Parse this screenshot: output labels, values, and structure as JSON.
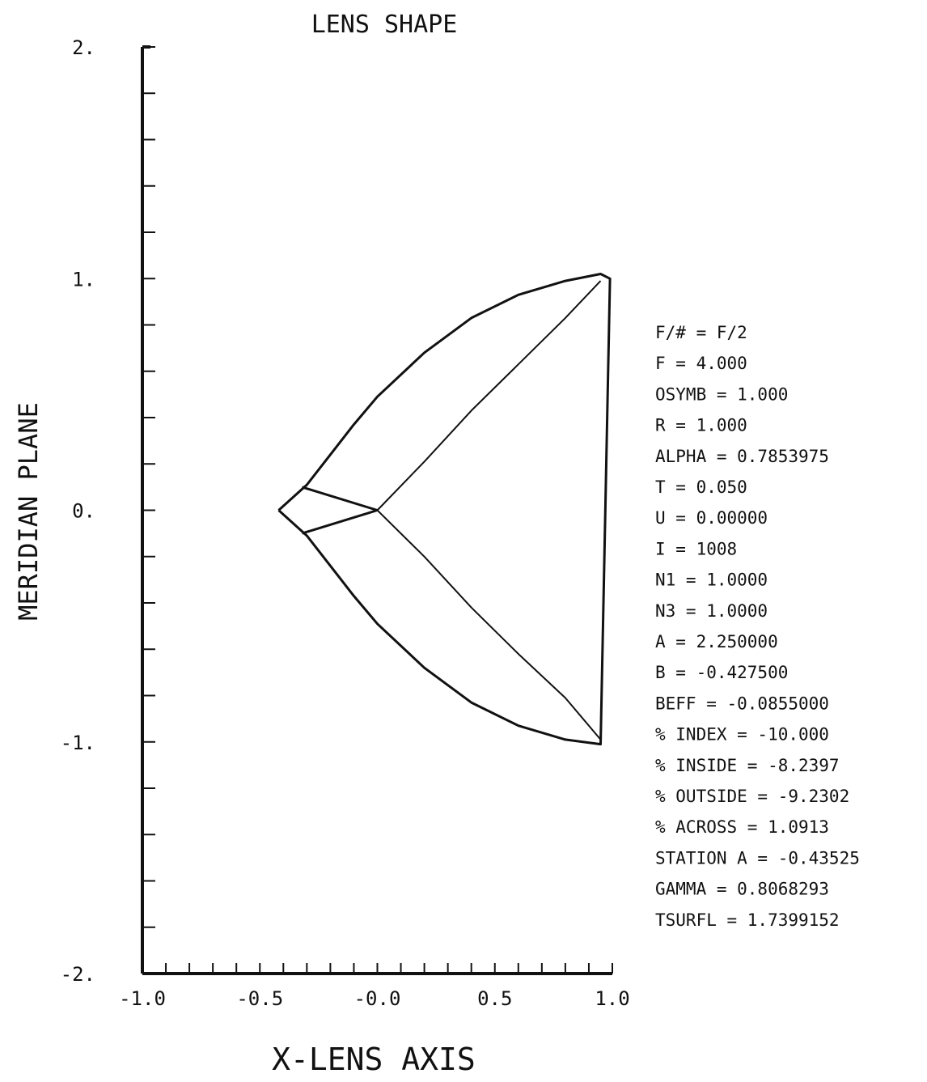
{
  "chart_data": {
    "type": "line",
    "title": "LENS SHAPE",
    "xlabel": "X-LENS AXIS",
    "ylabel": "MERIDIAN PLANE",
    "xlim": [
      -1.0,
      1.0
    ],
    "ylim": [
      -2.0,
      2.0
    ],
    "x_ticks": [
      "-1.0",
      "-0.5",
      "-0.0",
      "0.5",
      "1.0"
    ],
    "y_ticks": [
      "2.",
      "1.",
      "0.",
      "-1.",
      "-2."
    ],
    "series": [
      {
        "id": "outer-surface",
        "x": [
          -0.42,
          -0.3,
          -0.2,
          -0.1,
          0.0,
          0.2,
          0.4,
          0.6,
          0.8,
          0.95,
          0.99,
          0.95,
          0.8,
          0.6,
          0.4,
          0.2,
          0.0,
          -0.1,
          -0.2,
          -0.3,
          -0.42
        ],
        "y": [
          0.0,
          0.11,
          0.24,
          0.37,
          0.49,
          0.68,
          0.83,
          0.93,
          0.99,
          1.02,
          1.0,
          -1.01,
          -0.99,
          -0.93,
          -0.83,
          -0.68,
          -0.49,
          -0.37,
          -0.24,
          -0.11,
          0.0
        ]
      },
      {
        "id": "upper-inner-line",
        "x": [
          0.0,
          0.2,
          0.4,
          0.6,
          0.8,
          0.95
        ],
        "y": [
          0.0,
          0.21,
          0.43,
          0.63,
          0.83,
          0.99
        ]
      },
      {
        "id": "lower-inner-line",
        "x": [
          0.0,
          0.2,
          0.4,
          0.6,
          0.8,
          0.95
        ],
        "y": [
          0.0,
          -0.2,
          -0.42,
          -0.62,
          -0.81,
          -0.99
        ]
      },
      {
        "id": "upper-chord",
        "x": [
          -0.32,
          0.0
        ],
        "y": [
          0.1,
          0.0
        ]
      },
      {
        "id": "lower-chord",
        "x": [
          -0.32,
          0.0
        ],
        "y": [
          -0.1,
          0.0
        ]
      }
    ]
  },
  "parameters": [
    "F/# = F/2",
    "F = 4.000",
    "OSYMB = 1.000",
    "R = 1.000",
    "ALPHA = 0.7853975",
    "T = 0.050",
    "U = 0.00000",
    "I = 1008",
    "N1 = 1.0000",
    "N3 = 1.0000",
    "A = 2.250000",
    "B = -0.427500",
    "BEFF = -0.0855000",
    "% INDEX = -10.000",
    "% INSIDE = -8.2397",
    "% OUTSIDE = -9.2302",
    "% ACROSS = 1.0913",
    "STATION A = -0.43525",
    "GAMMA = 0.8068293",
    "TSURFL = 1.7399152"
  ]
}
